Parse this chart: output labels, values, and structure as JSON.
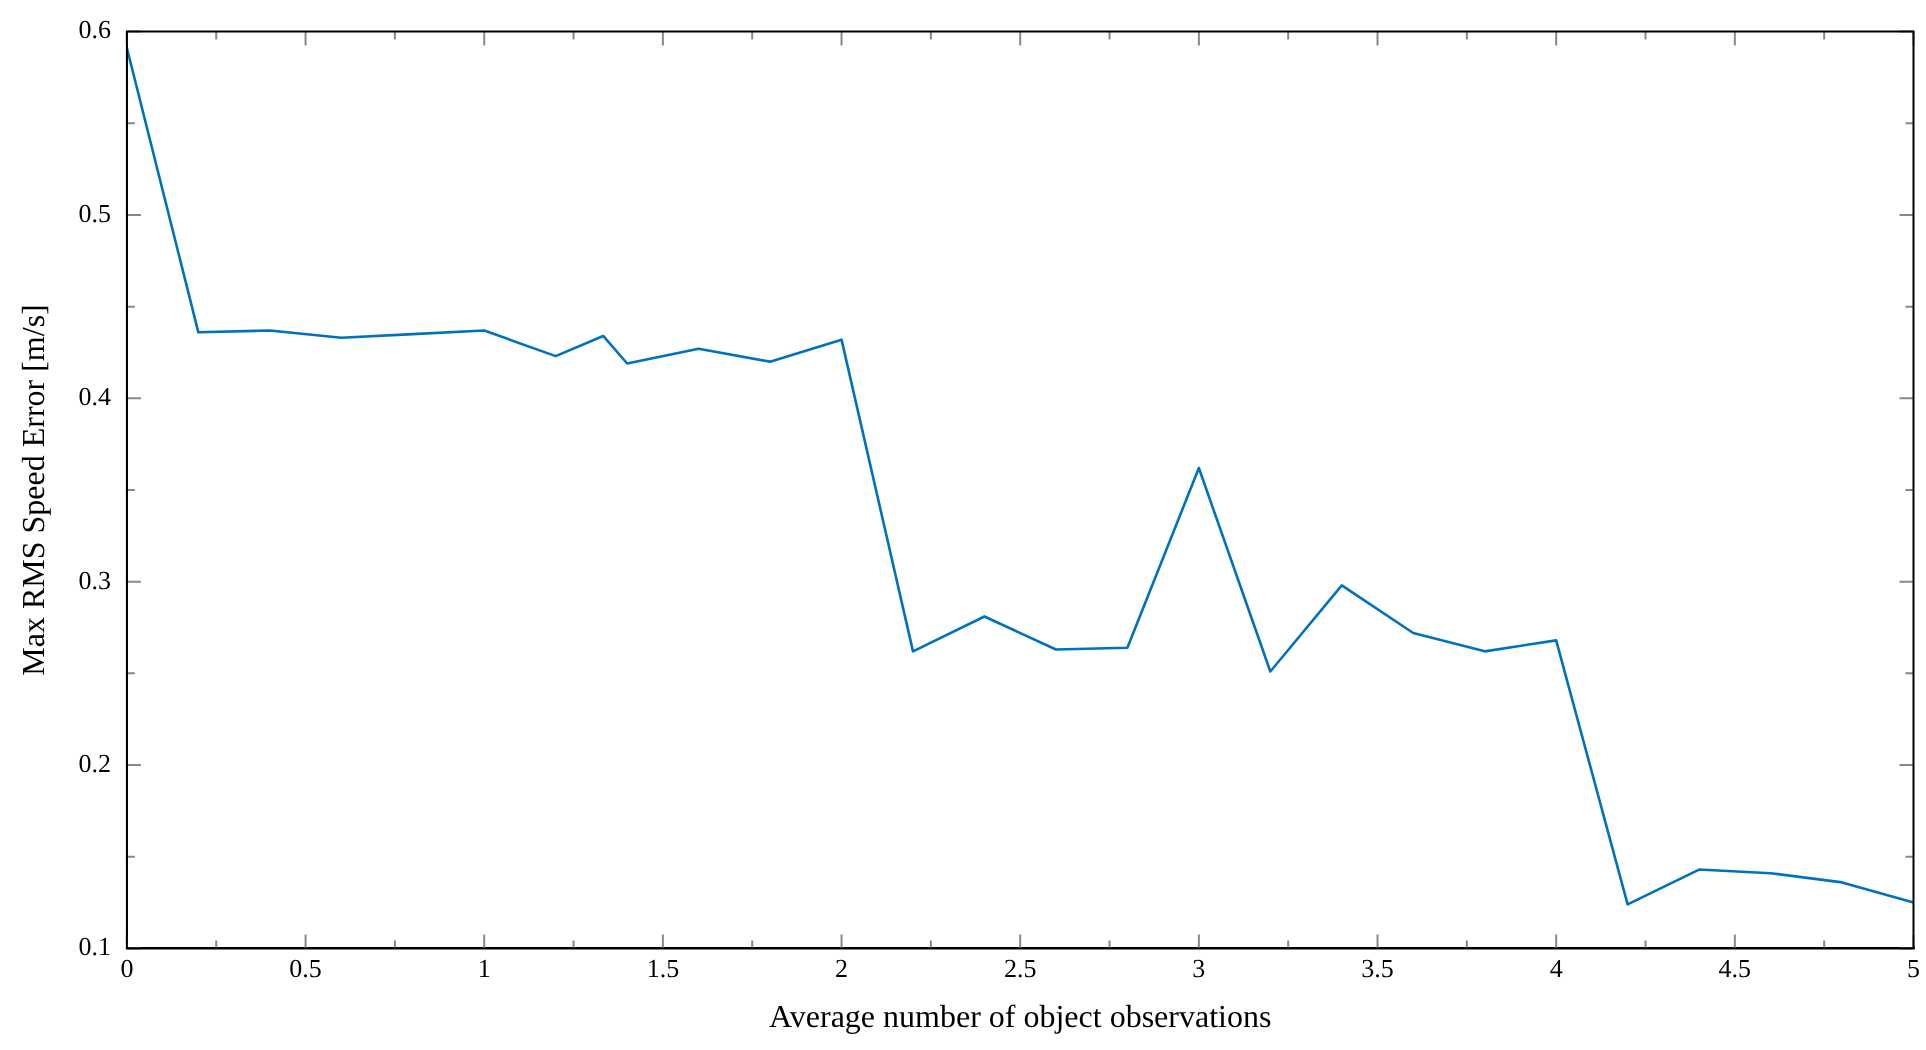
{
  "chart_data": {
    "type": "line",
    "xlabel": "Average number of object observations",
    "ylabel": "Max RMS Speed Error [m/s]",
    "x": [
      0,
      0.2,
      0.4,
      0.6,
      0.8,
      1.0,
      1.2,
      1.333,
      1.4,
      1.6,
      1.8,
      2.0,
      2.2,
      2.4,
      2.6,
      2.8,
      3.0,
      3.2,
      3.4,
      3.6,
      3.8,
      4.0,
      4.2,
      4.4,
      4.6,
      4.8,
      5.0
    ],
    "series": [
      {
        "color": "#0072bd",
        "values": [
          0.591,
          0.436,
          0.437,
          0.433,
          0.435,
          0.437,
          0.423,
          0.434,
          0.419,
          0.427,
          0.42,
          0.432,
          0.262,
          0.281,
          0.263,
          0.264,
          0.362,
          0.251,
          0.298,
          0.272,
          0.262,
          0.268,
          0.124,
          0.143,
          0.141,
          0.136,
          0.125
        ]
      }
    ],
    "xlim": [
      0,
      5
    ],
    "xticks": [
      0,
      {
        "value": 0.25,
        "label": null
      },
      0.5,
      {
        "value": 0.75,
        "label": null
      },
      1,
      {
        "value": 1.25,
        "label": null
      },
      1.5,
      {
        "value": 1.75,
        "label": null
      },
      2,
      {
        "value": 2.25,
        "label": null
      },
      2.5,
      {
        "value": 2.75,
        "label": null
      },
      3,
      {
        "value": 3.25,
        "label": null
      },
      3.5,
      {
        "value": 3.75,
        "label": null
      },
      4,
      {
        "value": 4.25,
        "label": null
      },
      4.5,
      {
        "value": 4.75,
        "label": null
      },
      5
    ],
    "ylim": [
      0.1,
      0.6
    ],
    "yticks": [
      0.1,
      {
        "value": 0.15,
        "label": null
      },
      0.2,
      {
        "value": 0.25,
        "label": null
      },
      0.3,
      {
        "value": 0.35,
        "label": null
      },
      0.4,
      {
        "value": 0.45,
        "label": null
      },
      0.5,
      {
        "value": 0.55,
        "label": null
      },
      0.6
    ],
    "grid": false,
    "legend": false,
    "marker": "none",
    "line_style": "solid"
  }
}
